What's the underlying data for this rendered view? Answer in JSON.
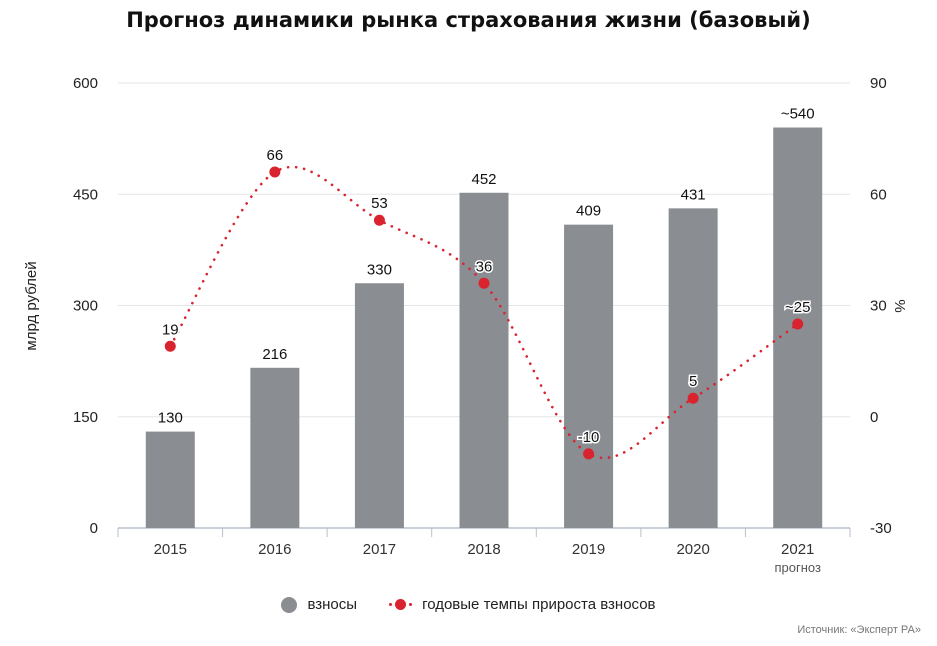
{
  "chart_data": {
    "type": "bar",
    "title": "Прогноз динамики рынка страхования жизни (базовый)",
    "categories": [
      "2015",
      "2016",
      "2017",
      "2018",
      "2019",
      "2020",
      "2021"
    ],
    "category_sublabels": [
      "",
      "",
      "",
      "",
      "",
      "",
      "прогноз"
    ],
    "series": [
      {
        "name": "взносы",
        "type": "bar",
        "axis": "left",
        "color": "#8a8d91",
        "values": [
          130,
          216,
          330,
          452,
          409,
          431,
          540
        ],
        "labels": [
          "130",
          "216",
          "330",
          "452",
          "409",
          "431",
          "~540"
        ]
      },
      {
        "name": "годовые темпы прироста взносов",
        "type": "line",
        "style": "dotted",
        "axis": "right",
        "color": "#d9232e",
        "values": [
          19,
          66,
          53,
          36,
          -10,
          5,
          25
        ],
        "labels": [
          "19",
          "66",
          "53",
          "36",
          "-10",
          "5",
          "~25"
        ]
      }
    ],
    "y_left": {
      "label": "млрд рублей",
      "min": 0,
      "max": 600,
      "ticks": [
        0,
        150,
        300,
        450,
        600
      ]
    },
    "y_right": {
      "label": "%",
      "min": -30,
      "max": 90,
      "ticks": [
        -30,
        0,
        30,
        60,
        90
      ]
    },
    "grid": true,
    "legend_position": "bottom"
  },
  "source": "Источник: «Эксперт РА»"
}
